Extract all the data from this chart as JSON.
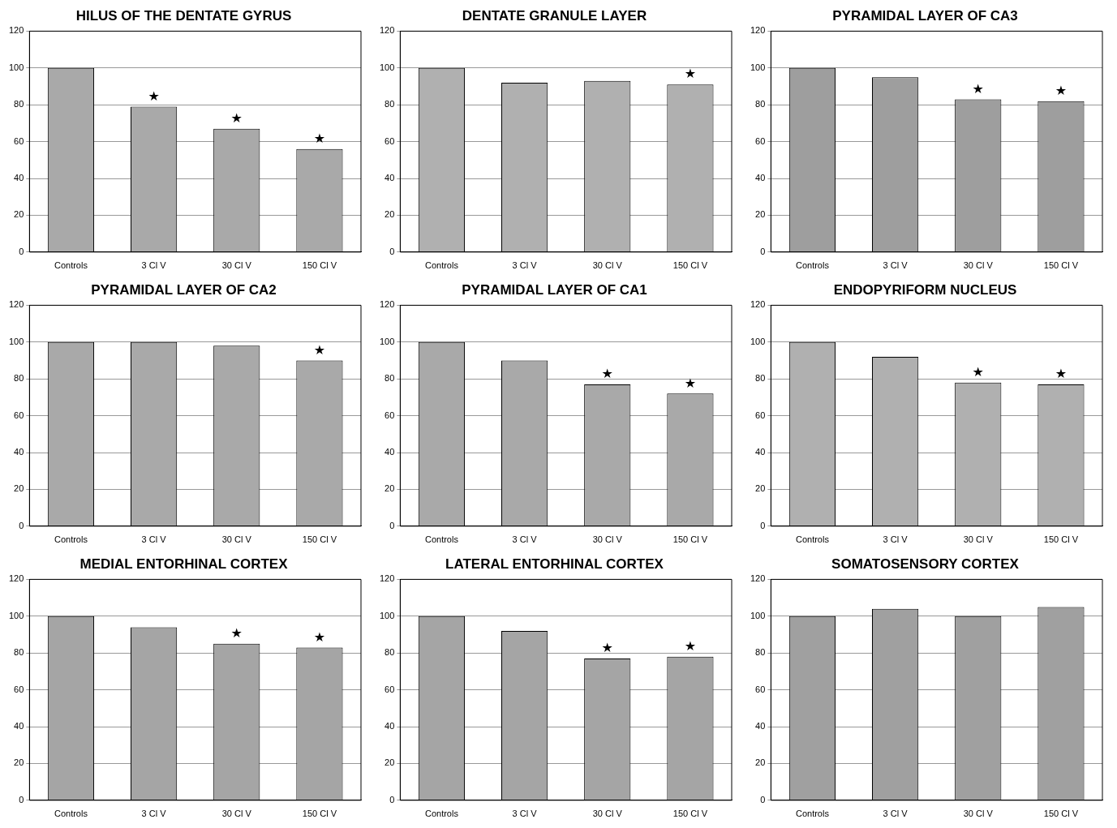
{
  "chart_data": [
    {
      "type": "bar",
      "title": "HILUS OF THE DENTATE GYRUS",
      "categories": [
        "Controls",
        "3 Cl V",
        "30 Cl V",
        "150 Cl V"
      ],
      "values": [
        100,
        79,
        67,
        56
      ],
      "color": "#a9a9a9",
      "ylim": [
        0,
        120
      ],
      "yticks": [
        0,
        20,
        40,
        60,
        80,
        100,
        120
      ],
      "grid": "y",
      "annotations": [
        {
          "text": "★",
          "x": "3 Cl V",
          "y": 79
        },
        {
          "text": "★",
          "x": "30 Cl V",
          "y": 67
        },
        {
          "text": "★",
          "x": "150 Cl V",
          "y": 56
        }
      ]
    },
    {
      "type": "bar",
      "title": "DENTATE GRANULE LAYER",
      "categories": [
        "Controls",
        "3 Cl V",
        "30 Cl V",
        "150 Cl V"
      ],
      "values": [
        100,
        92,
        93,
        91
      ],
      "color": "#b0b0b0",
      "ylim": [
        0,
        120
      ],
      "yticks": [
        0,
        20,
        40,
        60,
        80,
        100,
        120
      ],
      "grid": "y",
      "annotations": [
        {
          "text": "★",
          "x": "150 Cl V",
          "y": 91
        }
      ]
    },
    {
      "type": "bar",
      "title": "PYRAMIDAL LAYER OF CA3",
      "categories": [
        "Controls",
        "3 Cl V",
        "30 Cl V",
        "150 Cl V"
      ],
      "values": [
        100,
        95,
        83,
        82
      ],
      "color": "#9e9e9e",
      "ylim": [
        0,
        120
      ],
      "yticks": [
        0,
        20,
        40,
        60,
        80,
        100,
        120
      ],
      "grid": "y",
      "annotations": [
        {
          "text": "★",
          "x": "30 Cl V",
          "y": 83
        },
        {
          "text": "★",
          "x": "150 Cl V",
          "y": 82
        }
      ]
    },
    {
      "type": "bar",
      "title": "PYRAMIDAL LAYER OF CA2",
      "categories": [
        "Controls",
        "3 Cl V",
        "30 Cl V",
        "150 Cl V"
      ],
      "values": [
        100,
        100,
        98,
        90
      ],
      "color": "#a9a9a9",
      "ylim": [
        0,
        120
      ],
      "yticks": [
        0,
        20,
        40,
        60,
        80,
        100,
        120
      ],
      "grid": "y",
      "annotations": [
        {
          "text": "★",
          "x": "150 Cl V",
          "y": 90
        }
      ]
    },
    {
      "type": "bar",
      "title": "PYRAMIDAL LAYER OF CA1",
      "categories": [
        "Controls",
        "3 Cl V",
        "30 Cl V",
        "150 Cl V"
      ],
      "values": [
        100,
        90,
        77,
        72
      ],
      "color": "#a9a9a9",
      "ylim": [
        0,
        120
      ],
      "yticks": [
        0,
        20,
        40,
        60,
        80,
        100,
        120
      ],
      "grid": "y",
      "annotations": [
        {
          "text": "★",
          "x": "30 Cl V",
          "y": 77
        },
        {
          "text": "★",
          "x": "150 Cl V",
          "y": 72
        }
      ]
    },
    {
      "type": "bar",
      "title": "ENDOPYRIFORM NUCLEUS",
      "categories": [
        "Controls",
        "3 Cl V",
        "30 Cl V",
        "150 Cl V"
      ],
      "values": [
        100,
        92,
        78,
        77
      ],
      "color": "#b0b0b0",
      "ylim": [
        0,
        120
      ],
      "yticks": [
        0,
        20,
        40,
        60,
        80,
        100,
        120
      ],
      "grid": "y",
      "annotations": [
        {
          "text": "★",
          "x": "30 Cl V",
          "y": 78
        },
        {
          "text": "★",
          "x": "150 Cl V",
          "y": 77
        }
      ]
    },
    {
      "type": "bar",
      "title": "MEDIAL ENTORHINAL CORTEX",
      "categories": [
        "Controls",
        "3 Cl V",
        "30 Cl V",
        "150 Cl V"
      ],
      "values": [
        100,
        94,
        85,
        83
      ],
      "color": "#a5a5a5",
      "ylim": [
        0,
        120
      ],
      "yticks": [
        0,
        20,
        40,
        60,
        80,
        100,
        120
      ],
      "grid": "y",
      "annotations": [
        {
          "text": "★",
          "x": "30 Cl V",
          "y": 85
        },
        {
          "text": "★",
          "x": "150 Cl V",
          "y": 83
        }
      ]
    },
    {
      "type": "bar",
      "title": "LATERAL ENTORHINAL CORTEX",
      "categories": [
        "Controls",
        "3 Cl V",
        "30 Cl V",
        "150 Cl V"
      ],
      "values": [
        100,
        92,
        77,
        78
      ],
      "color": "#a5a5a5",
      "ylim": [
        0,
        120
      ],
      "yticks": [
        0,
        20,
        40,
        60,
        80,
        100,
        120
      ],
      "grid": "y",
      "annotations": [
        {
          "text": "★",
          "x": "30 Cl V",
          "y": 77
        },
        {
          "text": "★",
          "x": "150 Cl V",
          "y": 78
        }
      ]
    },
    {
      "type": "bar",
      "title": "SOMATOSENSORY CORTEX",
      "categories": [
        "Controls",
        "3 Cl V",
        "30 Cl V",
        "150 Cl V"
      ],
      "values": [
        100,
        104,
        100,
        105
      ],
      "color": "#a0a0a0",
      "ylim": [
        0,
        120
      ],
      "yticks": [
        0,
        20,
        40,
        60,
        80,
        100,
        120
      ],
      "grid": "y"
    }
  ]
}
